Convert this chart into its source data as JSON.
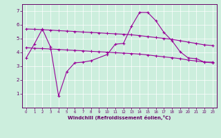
{
  "xlabel": "Windchill (Refroidissement éolien,°C)",
  "xlim": [
    -0.5,
    23.5
  ],
  "ylim": [
    0,
    7.5
  ],
  "yticks": [
    1,
    2,
    3,
    4,
    5,
    6,
    7
  ],
  "xticks": [
    0,
    1,
    2,
    3,
    4,
    5,
    6,
    7,
    8,
    9,
    10,
    11,
    12,
    13,
    14,
    15,
    16,
    17,
    18,
    19,
    20,
    21,
    22,
    23
  ],
  "background_color": "#cceedd",
  "line_color": "#990099",
  "line1_x": [
    0,
    1,
    2,
    3,
    4,
    5,
    6,
    7,
    8,
    10,
    11,
    12,
    13,
    14,
    15,
    16,
    17,
    18,
    19,
    20,
    21,
    22,
    23
  ],
  "line1_y": [
    3.6,
    4.6,
    5.7,
    4.4,
    0.85,
    2.6,
    3.25,
    3.3,
    3.4,
    3.85,
    4.6,
    4.65,
    5.9,
    6.9,
    6.9,
    6.3,
    5.45,
    4.85,
    4.05,
    3.6,
    3.55,
    3.3,
    3.3
  ],
  "line2_x": [
    0,
    1,
    2,
    3,
    4,
    5,
    6,
    7,
    8,
    9,
    10,
    11,
    12,
    13,
    14,
    15,
    16,
    17,
    18,
    19,
    20,
    21,
    22,
    23
  ],
  "line2_y": [
    5.7,
    5.68,
    5.65,
    5.62,
    5.58,
    5.55,
    5.52,
    5.48,
    5.45,
    5.42,
    5.38,
    5.35,
    5.32,
    5.28,
    5.22,
    5.15,
    5.08,
    5.02,
    4.95,
    4.85,
    4.75,
    4.65,
    4.55,
    4.5
  ],
  "line3_x": [
    0,
    1,
    2,
    3,
    4,
    5,
    6,
    7,
    8,
    9,
    10,
    11,
    12,
    13,
    14,
    15,
    16,
    17,
    18,
    19,
    20,
    21,
    22,
    23
  ],
  "line3_y": [
    4.35,
    4.3,
    4.28,
    4.25,
    4.22,
    4.18,
    4.15,
    4.12,
    4.08,
    4.05,
    4.02,
    3.98,
    3.95,
    3.92,
    3.88,
    3.82,
    3.75,
    3.68,
    3.62,
    3.55,
    3.45,
    3.38,
    3.3,
    3.25
  ]
}
